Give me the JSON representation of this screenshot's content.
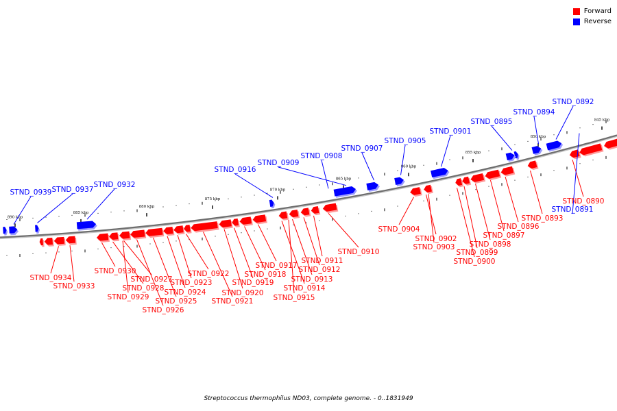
{
  "legend": {
    "forward_label": "Forward",
    "reverse_label": "Reverse",
    "forward_color": "#ff0000",
    "reverse_color": "#0000ff"
  },
  "footer": "Streptococcus thermophilus ND03, complete genome. - 0..1831949",
  "scale_labels": [
    "845 kbp",
    "850 kbp",
    "855 kbp",
    "860 kbp",
    "865 kbp",
    "870 kbp",
    "875 kbp",
    "880 kbp",
    "885 kbp",
    "890 kbp"
  ],
  "forward_genes": [
    "STND_0890",
    "STND_0893",
    "STND_0896",
    "STND_0897",
    "STND_0898",
    "STND_0899",
    "STND_0900",
    "STND_0902",
    "STND_0903",
    "STND_0904",
    "STND_0910",
    "STND_0911",
    "STND_0912",
    "STND_0913",
    "STND_0914",
    "STND_0915",
    "STND_0917",
    "STND_0918",
    "STND_0919",
    "STND_0920",
    "STND_0921",
    "STND_0922",
    "STND_0923",
    "STND_0924",
    "STND_0925",
    "STND_0926",
    "STND_0927",
    "STND_0928",
    "STND_0929",
    "STND_0930",
    "STND_0933",
    "STND_0934"
  ],
  "reverse_genes": [
    "STND_0891",
    "STND_0892",
    "STND_0894",
    "STND_0895",
    "STND_0901",
    "STND_0905",
    "STND_0907",
    "STND_0908",
    "STND_0909",
    "STND_0916",
    "STND_0932",
    "STND_0937",
    "STND_0939"
  ]
}
